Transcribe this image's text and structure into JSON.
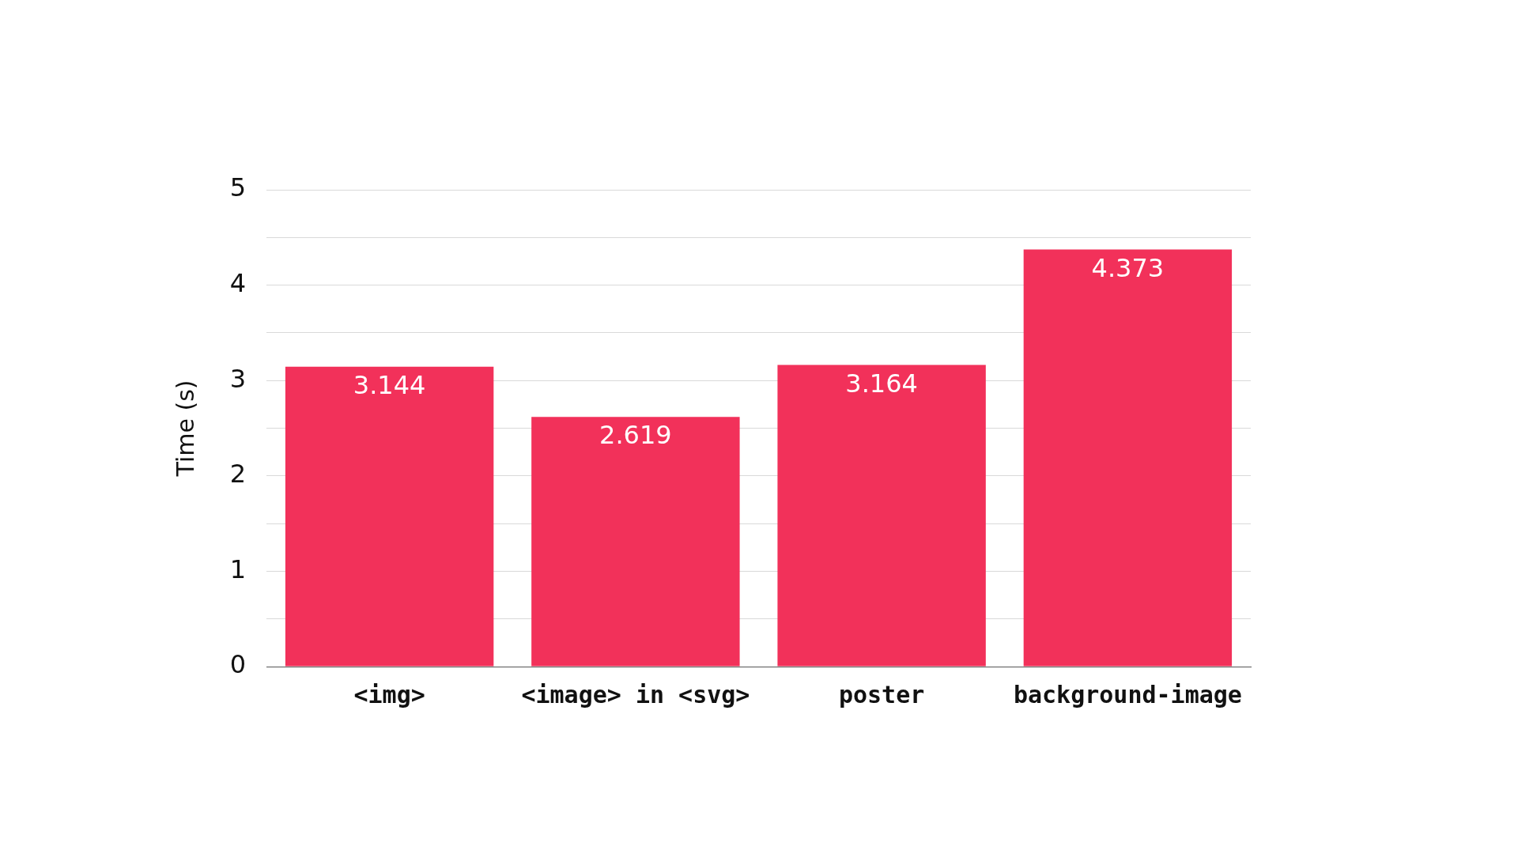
{
  "chart_data": {
    "type": "bar",
    "ylabel": "Time (s)",
    "categories": [
      "<img>",
      "<image> in <svg>",
      "poster",
      "background-image"
    ],
    "values": [
      3.144,
      2.619,
      3.164,
      4.373
    ],
    "color": "#f2315a",
    "ylim": [
      0,
      5
    ],
    "yticks": [
      0,
      {
        "value": 0.5,
        "label": null
      },
      1,
      {
        "value": 1.5,
        "label": null
      },
      2,
      {
        "value": 2.5,
        "label": null
      },
      3,
      {
        "value": 3.5,
        "label": null
      },
      4,
      {
        "value": 4.5,
        "label": null
      },
      5
    ],
    "grid": "y",
    "data_labels": true,
    "legend": false
  }
}
